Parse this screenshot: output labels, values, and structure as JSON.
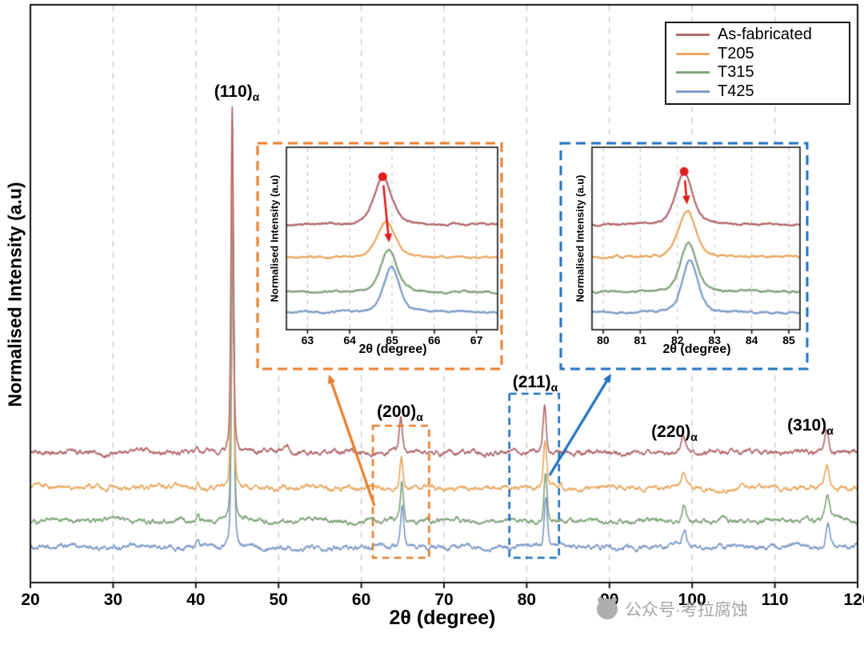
{
  "chart_data": {
    "type": "line",
    "title": "",
    "xlabel": "2θ (degree)",
    "ylabel": "Normalised Intensity (a.u)",
    "xlim": [
      20,
      120
    ],
    "ylim": [
      0,
      12.2
    ],
    "x_ticks": [
      20,
      30,
      40,
      50,
      60,
      70,
      80,
      90,
      100,
      110,
      120
    ],
    "grid": "vertical-dashed",
    "legend_position": "top-right",
    "series": [
      {
        "name": "As-fabricated",
        "color": "#b16a6e",
        "baseline": 2.75,
        "peaks": [
          [
            40.2,
            0.16,
            0.3
          ],
          [
            44.4,
            7.3,
            0.35
          ],
          [
            51.0,
            0.09,
            0.4
          ],
          [
            64.78,
            0.75,
            0.45
          ],
          [
            82.17,
            1.05,
            0.45
          ],
          [
            98.9,
            0.35,
            0.6
          ],
          [
            116.25,
            0.5,
            0.6
          ]
        ]
      },
      {
        "name": "T205",
        "color": "#e9a963",
        "baseline": 2.0,
        "peaks": [
          [
            40.2,
            0.14,
            0.3
          ],
          [
            44.42,
            6.9,
            0.35
          ],
          [
            64.84,
            0.72,
            0.45
          ],
          [
            82.22,
            1.0,
            0.45
          ],
          [
            98.95,
            0.33,
            0.6
          ],
          [
            116.3,
            0.48,
            0.6
          ]
        ]
      },
      {
        "name": "T315",
        "color": "#83a37e",
        "baseline": 1.3,
        "peaks": [
          [
            40.25,
            0.13,
            0.3
          ],
          [
            44.45,
            6.5,
            0.35
          ],
          [
            64.9,
            0.78,
            0.42
          ],
          [
            82.28,
            1.02,
            0.45
          ],
          [
            99.0,
            0.34,
            0.6
          ],
          [
            116.35,
            0.5,
            0.6
          ]
        ]
      },
      {
        "name": "T425",
        "color": "#7e9cc9",
        "baseline": 0.75,
        "peaks": [
          [
            40.25,
            0.13,
            0.3
          ],
          [
            44.47,
            6.9,
            0.35
          ],
          [
            64.95,
            0.8,
            0.42
          ],
          [
            82.32,
            1.05,
            0.45
          ],
          [
            99.05,
            0.35,
            0.6
          ],
          [
            116.4,
            0.52,
            0.6
          ]
        ]
      }
    ],
    "peak_labels": [
      {
        "text": "(110)",
        "sub": "α"
      },
      {
        "text": "(200)",
        "sub": "α"
      },
      {
        "text": "(211)",
        "sub": "α"
      },
      {
        "text": "(220)",
        "sub": "α"
      },
      {
        "text": "(310)",
        "sub": "α"
      }
    ],
    "highlight_boxes": [
      {
        "color": "#e87d2a",
        "x_range": [
          61.4,
          68.2
        ]
      },
      {
        "color": "#1f6fc0",
        "x_range": [
          77.9,
          83.9
        ]
      }
    ],
    "insets": [
      {
        "name": "inset-200-peak",
        "border_color": "#e87d2a",
        "xlabel": "2θ (degree)",
        "ylabel": "Normalised Intensity (a.u)",
        "xlim": [
          62.5,
          67.5
        ],
        "ylim": [
          0,
          5.3
        ],
        "x_ticks": [
          63,
          64,
          65,
          66,
          67
        ],
        "series": [
          {
            "peak_x": 64.78,
            "h": 1.35,
            "w": 0.5,
            "baseline": 3.05
          },
          {
            "peak_x": 64.86,
            "h": 1.05,
            "w": 0.5,
            "baseline": 2.1
          },
          {
            "peak_x": 64.93,
            "h": 1.25,
            "w": 0.45,
            "baseline": 1.1
          },
          {
            "peak_x": 64.98,
            "h": 1.3,
            "w": 0.45,
            "baseline": 0.5
          }
        ],
        "marker_series": 0,
        "arrow_target_series": 2
      },
      {
        "name": "inset-211-peak",
        "border_color": "#1f6fc0",
        "xlabel": "2θ (degree)",
        "ylabel": "Normalised Intensity (a.u)",
        "xlim": [
          79.7,
          85.3
        ],
        "ylim": [
          0,
          5.3
        ],
        "x_ticks": [
          80,
          81,
          82,
          83,
          84,
          85
        ],
        "series": [
          {
            "peak_x": 82.18,
            "h": 1.5,
            "w": 0.55,
            "baseline": 3.05
          },
          {
            "peak_x": 82.26,
            "h": 1.35,
            "w": 0.55,
            "baseline": 2.1
          },
          {
            "peak_x": 82.3,
            "h": 1.45,
            "w": 0.5,
            "baseline": 1.1
          },
          {
            "peak_x": 82.34,
            "h": 1.5,
            "w": 0.5,
            "baseline": 0.5
          }
        ],
        "marker_series": 0,
        "arrow_target_series": 1
      }
    ]
  },
  "watermark": {
    "text": "公众号·考拉腐蚀"
  }
}
